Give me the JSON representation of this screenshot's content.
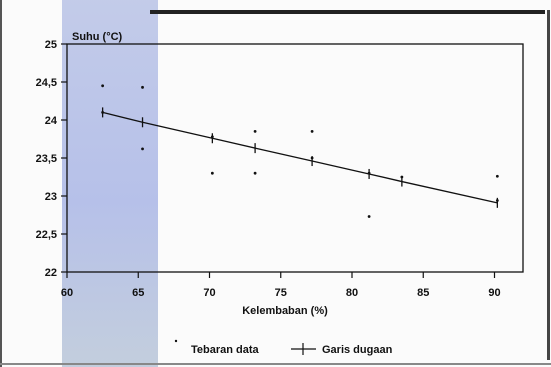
{
  "chart_data": {
    "type": "scatter",
    "ylabel": "Suhu (°C)",
    "xlabel": "Kelembaban (%)",
    "xlim": [
      60,
      92
    ],
    "ylim": [
      22,
      25
    ],
    "x_ticks": [
      60,
      65,
      70,
      75,
      80,
      85,
      90
    ],
    "y_ticks": [
      22,
      22.5,
      23,
      23.5,
      24,
      24.5,
      25
    ],
    "x_tick_labels": [
      "60",
      "65",
      "70",
      "75",
      "80",
      "85",
      "90"
    ],
    "y_tick_labels": [
      "22",
      "22,5",
      "23",
      "23,5",
      "24",
      "24,5",
      "25"
    ],
    "grid": false,
    "legend_position": "bottom",
    "series": [
      {
        "name": "Tebaran data",
        "kind": "points",
        "x": [
          62.5,
          62.5,
          65.3,
          65.3,
          70.2,
          70.2,
          73.2,
          73.2,
          77.2,
          77.2,
          81.2,
          81.2,
          83.5,
          90.2,
          90.2
        ],
        "y": [
          24.45,
          24.1,
          24.43,
          23.62,
          23.78,
          23.3,
          23.85,
          23.3,
          23.85,
          23.5,
          23.3,
          22.73,
          23.25,
          23.26,
          22.94
        ]
      },
      {
        "name": "Garis dugaan",
        "kind": "line",
        "x": [
          62.5,
          65.3,
          70.2,
          73.2,
          77.2,
          81.2,
          83.5,
          90.2
        ],
        "y": [
          24.1,
          23.97,
          23.76,
          23.63,
          23.46,
          23.29,
          23.19,
          22.91
        ]
      }
    ]
  }
}
